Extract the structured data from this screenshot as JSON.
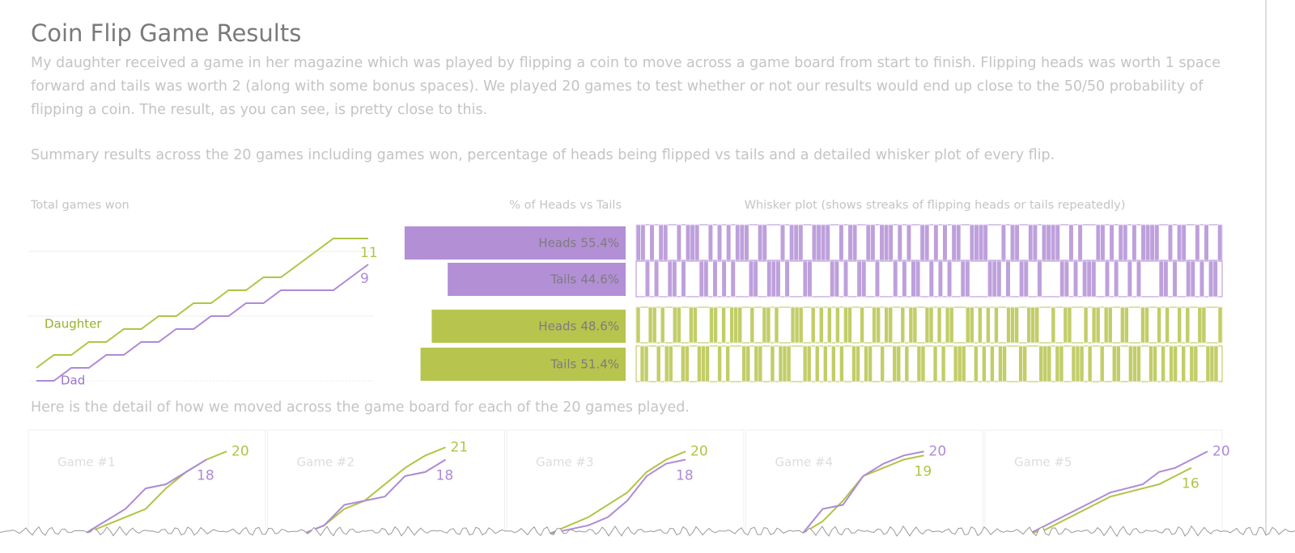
{
  "title": "Coin Flip Game Results",
  "description": [
    "My daughter received a game in her magazine which was played by flipping a coin to move across a game board from start to finish. Flipping heads was worth 1 space forward and tails was worth 2 (along with some bonus spaces). We played 20 games to test whether or not our results would end up close to the 50/50 probability of flipping a coin. The result, as you can see, is pretty close to this.",
    "Summary results across the 20 games including games won, percentage of heads being flipped vs tails and a detailed whisker plot of every flip."
  ],
  "detail_intro": "Here is the detail of how we moved across the game board for each of the 20 games played.",
  "chart_data": [
    {
      "type": "line",
      "title": "Total games won",
      "series": [
        {
          "name": "Daughter",
          "color": "#b3c346",
          "values": [
            1,
            2,
            2,
            3,
            3,
            4,
            4,
            5,
            5,
            6,
            6,
            7,
            7,
            8,
            8,
            9,
            10,
            11,
            11,
            11
          ]
        },
        {
          "name": "Dad",
          "color": "#ae8ad6",
          "values": [
            0,
            0,
            1,
            1,
            2,
            2,
            3,
            3,
            4,
            4,
            5,
            5,
            6,
            6,
            7,
            7,
            7,
            7,
            8,
            9
          ]
        }
      ],
      "ylim": [
        0,
        12
      ],
      "yticks": [
        0,
        5,
        10
      ],
      "grid": true
    },
    {
      "type": "bar",
      "title": "% of Heads vs Tails",
      "categories": [
        "Heads",
        "Tails"
      ],
      "series": [
        {
          "color": "#b38fd6",
          "values": [
            55.4,
            44.6
          ],
          "value_labels": [
            "55.4%",
            "44.6%"
          ]
        },
        {
          "color": "#b7c44e",
          "values": [
            48.6,
            51.4
          ],
          "value_labels": [
            "48.6%",
            "51.4%"
          ]
        }
      ]
    },
    {
      "type": "whisker",
      "title": "Whisker plot (shows streaks of flipping heads or tails repeatedly)",
      "series": [
        {
          "color": "#b38fd6",
          "flips": [
            1,
            1,
            0,
            1,
            0,
            1,
            1,
            0,
            0,
            1,
            0,
            1,
            1,
            1,
            0,
            0,
            1,
            0,
            1,
            0,
            1,
            0,
            1,
            1,
            1,
            0,
            0,
            1,
            1,
            0,
            0,
            0,
            1,
            0,
            1,
            1,
            1,
            0,
            0,
            1,
            1,
            1,
            1,
            0,
            0,
            1,
            0,
            1,
            1,
            0,
            0,
            1,
            1,
            0,
            1,
            1,
            1,
            0,
            1,
            0,
            1,
            0,
            0,
            1,
            1,
            0,
            1,
            0,
            1,
            0,
            1,
            1,
            0,
            0,
            1,
            1,
            1,
            1,
            0,
            0,
            0,
            1,
            0,
            1,
            1,
            0,
            0,
            1,
            1,
            0,
            1,
            1,
            1,
            1,
            0,
            0,
            1,
            0,
            1,
            0,
            0,
            0,
            1,
            1,
            0,
            1,
            0,
            1,
            1,
            0,
            1,
            0,
            1,
            1,
            1,
            1,
            0,
            0,
            1,
            0,
            1,
            1,
            0,
            0,
            1,
            0,
            1,
            0,
            0,
            1
          ]
        },
        {
          "color": "#b7c44e",
          "flips": [
            1,
            0,
            0,
            1,
            1,
            0,
            1,
            0,
            0,
            1,
            1,
            0,
            0,
            1,
            1,
            0,
            0,
            0,
            1,
            1,
            0,
            1,
            0,
            1,
            1,
            1,
            0,
            0,
            1,
            0,
            0,
            1,
            1,
            0,
            1,
            0,
            0,
            0,
            1,
            1,
            1,
            0,
            0,
            1,
            0,
            1,
            0,
            1,
            0,
            1,
            0,
            1,
            1,
            0,
            0,
            1,
            0,
            0,
            1,
            1,
            0,
            1,
            1,
            0,
            0,
            1,
            0,
            1,
            1,
            0,
            0,
            1,
            1,
            0,
            1,
            0,
            1,
            1,
            0,
            0,
            0,
            1,
            1,
            0,
            1,
            0,
            1,
            0,
            1,
            0,
            0,
            1,
            1,
            1,
            0,
            0,
            1,
            1,
            1,
            0,
            0,
            0,
            1,
            0,
            0,
            1,
            1,
            0,
            0,
            0,
            1,
            0,
            1,
            1,
            0,
            1,
            1,
            0,
            0,
            1,
            1,
            0,
            0,
            0,
            1,
            1,
            0,
            0,
            1,
            0,
            1,
            0,
            0,
            1,
            0,
            1,
            0,
            0,
            1,
            1,
            0,
            0,
            0,
            1
          ]
        }
      ]
    },
    {
      "type": "panels",
      "ylim": [
        0,
        24
      ],
      "panels": [
        {
          "title": "Game #1",
          "series": [
            {
              "color": "#b3c346",
              "values": [
                0,
                2,
                4,
                6,
                11,
                15,
                18,
                20
              ]
            },
            {
              "color": "#ae8ad6",
              "values": [
                0,
                3,
                6,
                11,
                12,
                15,
                18
              ]
            }
          ]
        },
        {
          "title": "Game #2",
          "series": [
            {
              "color": "#b3c346",
              "values": [
                0,
                2,
                6,
                8,
                12,
                16,
                19,
                21
              ]
            },
            {
              "color": "#ae8ad6",
              "values": [
                0,
                2,
                7,
                8,
                9,
                14,
                15,
                18
              ]
            }
          ]
        },
        {
          "title": "Game #3",
          "series": [
            {
              "color": "#b3c346",
              "values": [
                0,
                2,
                4,
                7,
                10,
                15,
                18,
                20
              ]
            },
            {
              "color": "#ae8ad6",
              "values": [
                0,
                1,
                2,
                4,
                8,
                14,
                17,
                18
              ]
            }
          ]
        },
        {
          "title": "Game #4",
          "series": [
            {
              "color": "#b3c346",
              "values": [
                0,
                3,
                8,
                14,
                16,
                18,
                19
              ]
            },
            {
              "color": "#ae8ad6",
              "values": [
                0,
                6,
                7,
                14,
                17,
                19,
                20
              ]
            }
          ]
        },
        {
          "title": "Game #5",
          "series": [
            {
              "color": "#b3c346",
              "values": [
                0,
                1,
                3,
                5,
                7,
                9,
                10,
                11,
                12,
                14,
                16
              ]
            },
            {
              "color": "#ae8ad6",
              "values": [
                0,
                2,
                4,
                6,
                8,
                10,
                11,
                12,
                15,
                16,
                18,
                20
              ]
            }
          ]
        }
      ]
    }
  ]
}
